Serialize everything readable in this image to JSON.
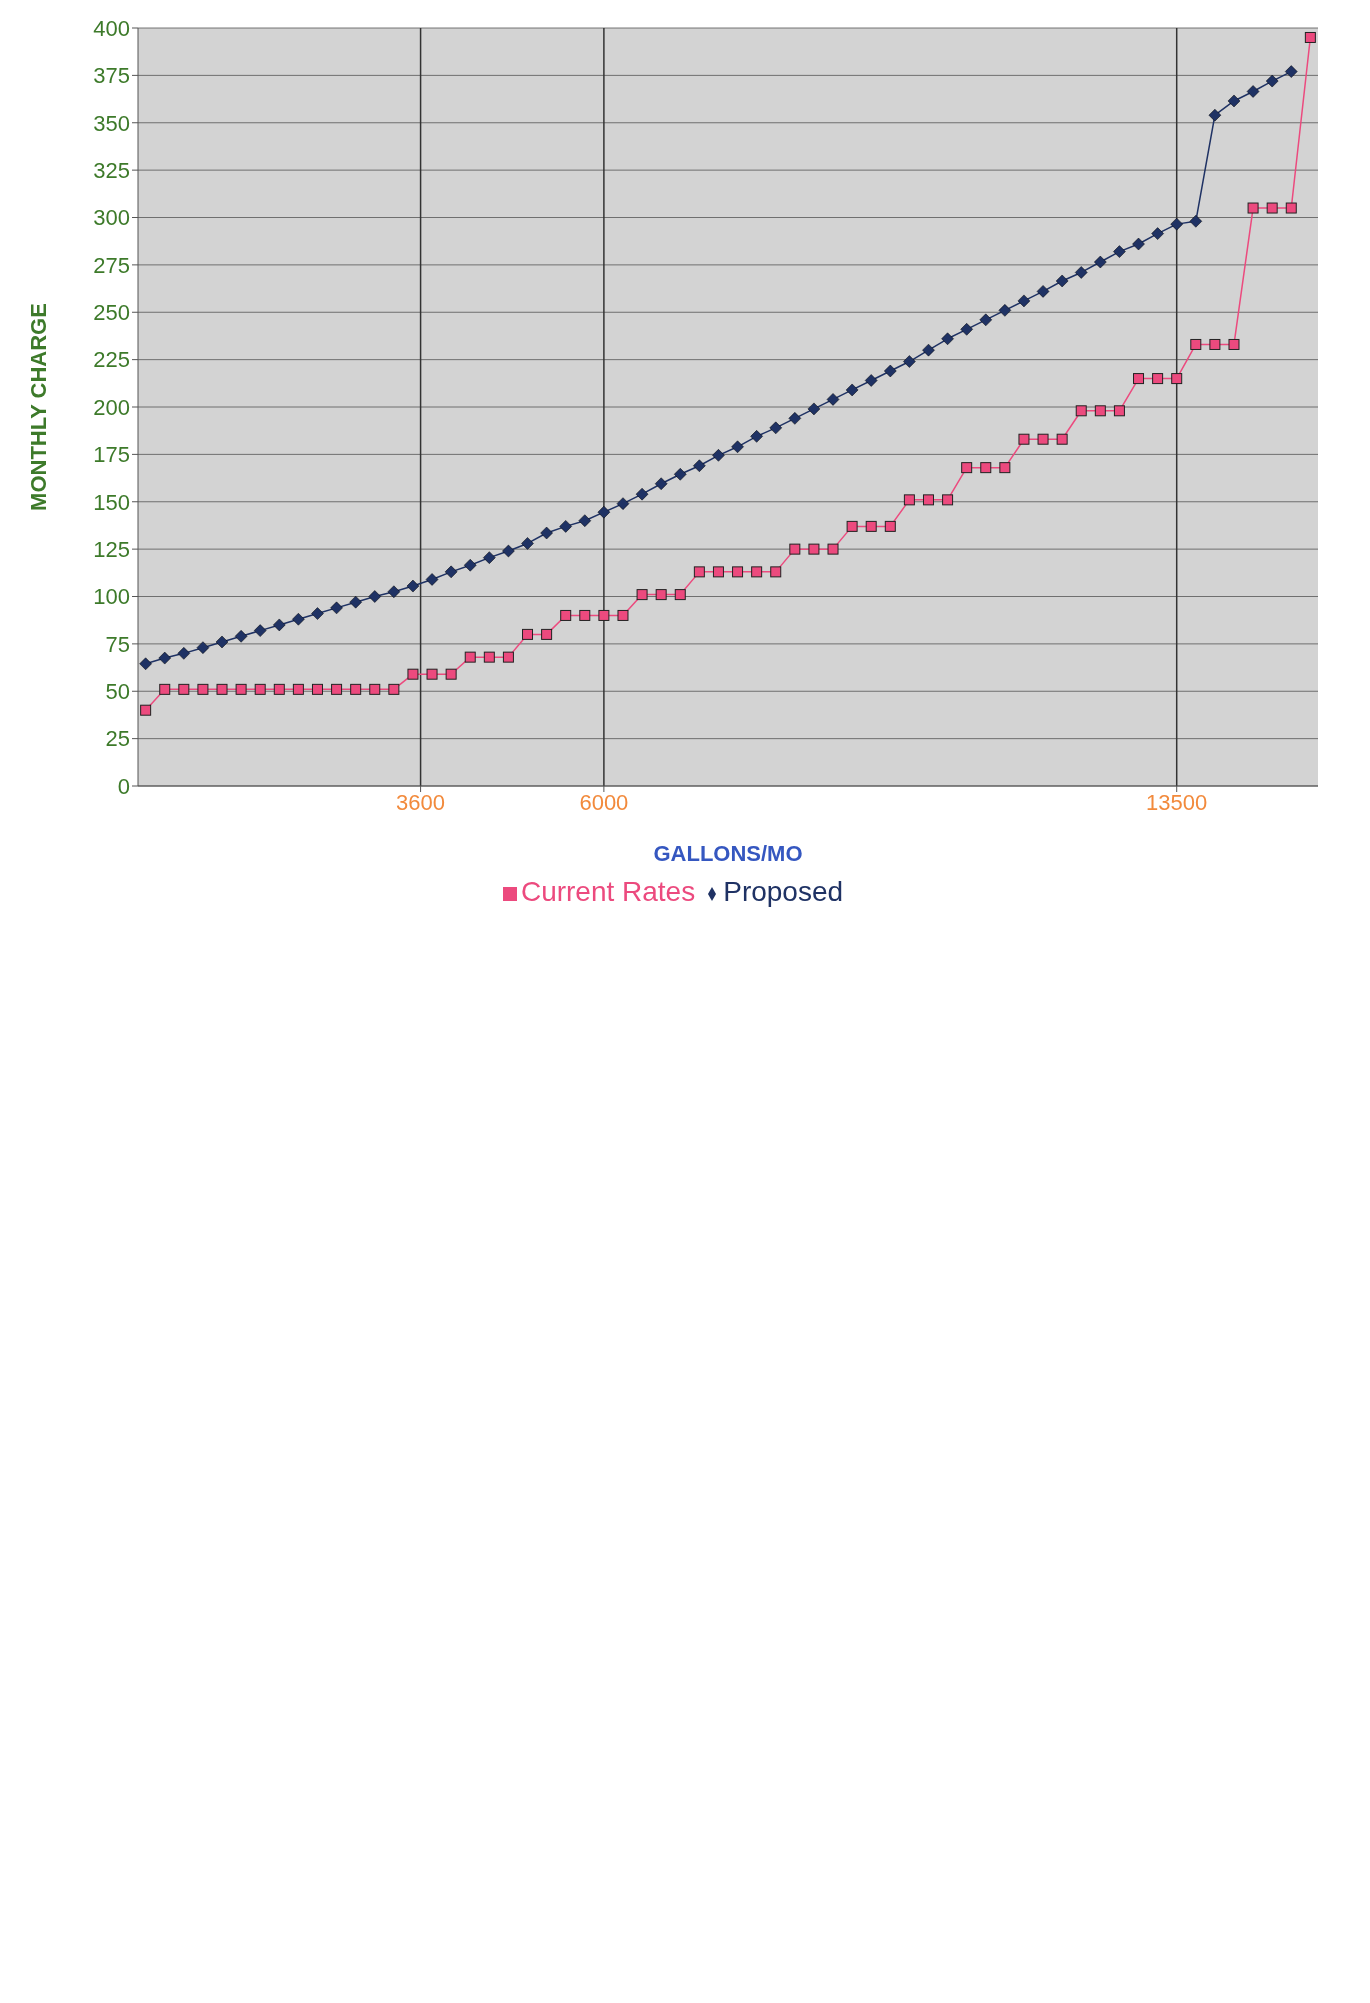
{
  "chart_data": {
    "type": "line",
    "xlabel": "GALLONS/MO",
    "ylabel": "MONTHLY CHARGE",
    "x": [
      0,
      250,
      500,
      750,
      1000,
      1250,
      1500,
      1750,
      2000,
      2250,
      2500,
      2750,
      3000,
      3250,
      3500,
      3750,
      4000,
      4250,
      4500,
      4750,
      5000,
      5250,
      5500,
      5750,
      6000,
      6250,
      6500,
      6750,
      7000,
      7250,
      7500,
      7750,
      8000,
      8250,
      8500,
      8750,
      9000,
      9250,
      9500,
      9750,
      10000,
      10250,
      10500,
      10750,
      11000,
      11250,
      11500,
      11750,
      12000,
      12250,
      12500,
      12750,
      13000,
      13250,
      13500,
      13750,
      14000,
      14250,
      14500,
      14750,
      15000,
      15250
    ],
    "xlim": [
      -100,
      15350
    ],
    "xticks": [
      3600,
      6000,
      13500
    ],
    "ylim": [
      0,
      400
    ],
    "yticks": [
      0,
      25,
      50,
      75,
      100,
      125,
      150,
      175,
      200,
      225,
      250,
      275,
      300,
      325,
      350,
      375,
      400
    ],
    "grid": "y",
    "legend": "bottom",
    "series": [
      {
        "name": "Proposed",
        "color": "#1f3264",
        "marker": "diamond",
        "values": [
          64.5,
          67.5,
          70,
          73,
          76,
          79,
          82,
          85,
          88,
          91,
          94,
          97,
          100,
          102.5,
          105.5,
          109,
          113,
          116.5,
          120.5,
          124,
          128,
          133.5,
          137,
          140,
          144.5,
          149,
          154,
          159.5,
          164.5,
          169,
          174.5,
          179,
          184.5,
          189,
          194,
          199,
          204,
          209,
          214,
          219,
          224,
          230,
          236,
          241,
          246,
          251,
          256,
          261,
          266.5,
          271,
          276.5,
          282,
          286,
          291.5,
          296.5,
          298,
          354,
          361.5,
          366.5,
          372,
          377,
          null
        ]
      },
      {
        "name": "Current Rates",
        "color": "#ec4a7e",
        "marker": "square",
        "values": [
          40,
          51,
          51,
          51,
          51,
          51,
          51,
          51,
          51,
          51,
          51,
          51,
          51,
          51,
          59,
          59,
          59,
          68,
          68,
          68,
          80,
          80,
          90,
          90,
          90,
          90,
          101,
          101,
          101,
          113,
          113,
          113,
          113,
          113,
          125,
          125,
          125,
          137,
          137,
          137,
          151,
          151,
          151,
          168,
          168,
          168,
          183,
          183,
          183,
          198,
          198,
          198,
          215,
          215,
          215,
          233,
          233,
          233,
          305,
          305,
          305,
          395
        ]
      }
    ],
    "ref_lines": [
      {
        "axis": "x",
        "value": 3600,
        "color": "#333333"
      },
      {
        "axis": "x",
        "value": 6000,
        "color": "#333333"
      },
      {
        "axis": "x",
        "value": 13500,
        "color": "#333333"
      }
    ]
  }
}
